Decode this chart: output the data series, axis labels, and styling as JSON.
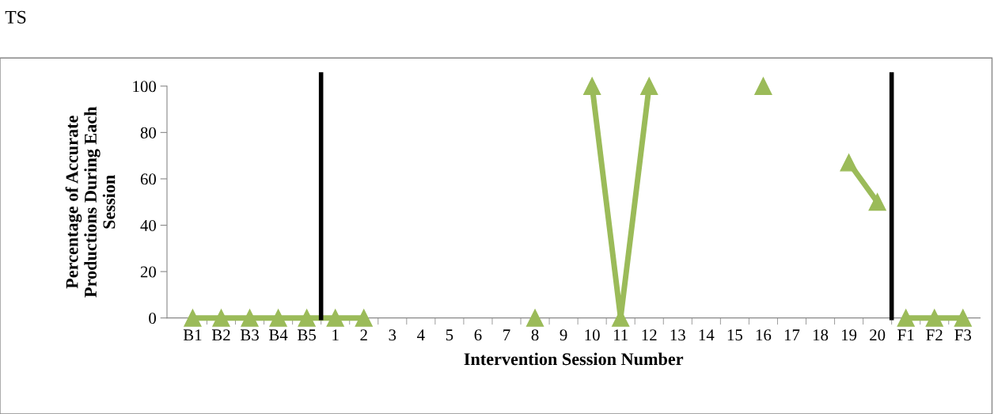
{
  "chart_data": {
    "type": "line",
    "title": "TS",
    "xlabel": "Intervention Session Number",
    "ylabel": "Percentage of Accurate Productions During Each Session",
    "categories": [
      "B1",
      "B2",
      "B3",
      "B4",
      "B5",
      "1",
      "2",
      "3",
      "4",
      "5",
      "6",
      "7",
      "8",
      "9",
      "10",
      "11",
      "12",
      "13",
      "14",
      "15",
      "16",
      "17",
      "18",
      "19",
      "20",
      "F1",
      "F2",
      "F3"
    ],
    "series": [
      {
        "color": "#9bbb59",
        "values": [
          0,
          0,
          0,
          0,
          0,
          0,
          0,
          null,
          null,
          null,
          null,
          null,
          0,
          null,
          100,
          0,
          100,
          null,
          null,
          null,
          100,
          null,
          null,
          67,
          50,
          null,
          null,
          null
        ]
      },
      {
        "color": "#9bbb59",
        "values": [
          null,
          null,
          null,
          null,
          null,
          null,
          null,
          null,
          null,
          null,
          null,
          null,
          null,
          null,
          null,
          null,
          null,
          null,
          null,
          null,
          null,
          null,
          null,
          null,
          null,
          0,
          0,
          0
        ]
      }
    ],
    "ylim": [
      0,
      100
    ],
    "yticks": [
      0,
      20,
      40,
      60,
      80,
      100
    ],
    "grid": false,
    "legend": false,
    "marker": "triangle",
    "line_style": "solid"
  }
}
